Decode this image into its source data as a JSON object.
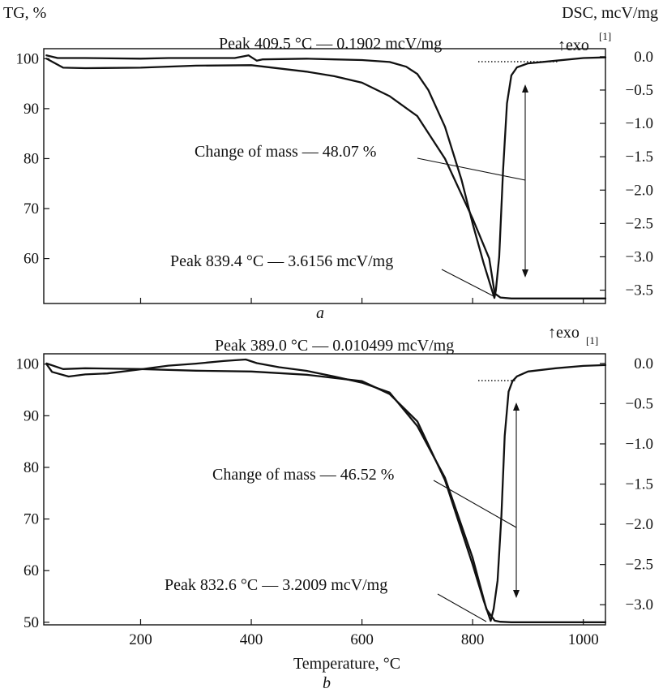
{
  "axes": {
    "tg_label": "TG, %",
    "dsc_label": "DSC, mcV/mg",
    "x_label": "Temperature, °C",
    "x_ticks": [
      "200",
      "400",
      "600",
      "800",
      "1000"
    ]
  },
  "chart_data": [
    {
      "type": "line",
      "panel_label": "a",
      "xlim": [
        25,
        1040
      ],
      "ylim_left": [
        51,
        102
      ],
      "ylim_right": [
        -3.7,
        0.12
      ],
      "y_left_ticks": [
        "100",
        "90",
        "80",
        "70",
        "60"
      ],
      "y_right_ticks": [
        "0.0",
        "−0.5",
        "−1.0",
        "−1.5",
        "−2.0",
        "−2.5",
        "−3.0",
        "−3.5"
      ],
      "exo_label": "↑exo",
      "exo_superscript": "[1]",
      "annotations": {
        "peak_top": "Peak 409.5 °C — 0.1902 mcV/mg",
        "mass_change": "Change of mass — 48.07 %",
        "peak_bottom": "Peak 839.4 °C — 3.6156 mcV/mg"
      },
      "series": [
        {
          "axis": "left",
          "x": [
            30,
            60,
            100,
            200,
            300,
            400,
            500,
            550,
            600,
            650,
            700,
            750,
            800,
            830,
            840,
            850,
            870,
            900,
            1000,
            1040
          ],
          "values": [
            100,
            98.2,
            98.1,
            98.2,
            98.6,
            98.7,
            97.4,
            96.5,
            95.2,
            92.5,
            88.5,
            80,
            68,
            60,
            53,
            52.2,
            52,
            52,
            52,
            52
          ]
        },
        {
          "axis": "right",
          "x": [
            30,
            50,
            100,
            200,
            250,
            300,
            370,
            395,
            410,
            420,
            500,
            550,
            600,
            650,
            680,
            700,
            720,
            750,
            780,
            800,
            820,
            835,
            839.4,
            842,
            848,
            855,
            862,
            870,
            880,
            900,
            950,
            1000,
            1040
          ],
          "values": [
            0.02,
            -0.02,
            -0.02,
            -0.03,
            -0.02,
            -0.02,
            -0.02,
            0.02,
            -0.06,
            -0.04,
            -0.03,
            -0.04,
            -0.05,
            -0.08,
            -0.15,
            -0.26,
            -0.5,
            -1.05,
            -1.85,
            -2.5,
            -3.1,
            -3.5,
            -3.6156,
            -3.5,
            -3.0,
            -1.7,
            -0.7,
            -0.28,
            -0.16,
            -0.1,
            -0.06,
            -0.02,
            -0.01
          ]
        }
      ]
    },
    {
      "type": "line",
      "panel_label": "b",
      "xlim": [
        25,
        1040
      ],
      "ylim_left": [
        49.5,
        102
      ],
      "ylim_right": [
        -3.25,
        0.12
      ],
      "y_left_ticks": [
        "100",
        "90",
        "80",
        "70",
        "60",
        "50"
      ],
      "y_right_ticks": [
        "0.0",
        "−0.5",
        "−1.0",
        "−1.5",
        "−2.0",
        "−2.5",
        "−3.0"
      ],
      "exo_label": "↑exo",
      "exo_superscript": "[1]",
      "annotations": {
        "peak_top": "Peak 389.0 °C — 0.010499 mcV/mg",
        "mass_change": "Change of mass — 46.52 %",
        "peak_bottom": "Peak 832.6 °C — 3.2009 mcV/mg"
      },
      "series": [
        {
          "axis": "left",
          "x": [
            30,
            40,
            70,
            100,
            140,
            200,
            250,
            300,
            350,
            390,
            410,
            450,
            500,
            550,
            600,
            650,
            700,
            750,
            800,
            825,
            840,
            850,
            870,
            900,
            1000,
            1040
          ],
          "values": [
            100,
            98.5,
            97.6,
            98.0,
            98.2,
            99.0,
            99.7,
            100.1,
            100.6,
            100.9,
            100.2,
            99.4,
            98.7,
            97.6,
            96.4,
            94.5,
            88.0,
            78.0,
            62.5,
            52.5,
            50.3,
            50.1,
            50.0,
            50.0,
            50.0,
            50.0
          ]
        },
        {
          "axis": "right",
          "x": [
            30,
            60,
            100,
            200,
            300,
            400,
            500,
            600,
            650,
            700,
            750,
            800,
            820,
            832.6,
            838,
            845,
            852,
            858,
            865,
            872,
            880,
            900,
            950,
            1000,
            1040
          ],
          "values": [
            -0.0,
            -0.07,
            -0.06,
            -0.07,
            -0.09,
            -0.1,
            -0.14,
            -0.22,
            -0.38,
            -0.72,
            -1.45,
            -2.5,
            -2.95,
            -3.2009,
            -3.05,
            -2.7,
            -1.9,
            -0.9,
            -0.35,
            -0.22,
            -0.16,
            -0.1,
            -0.06,
            -0.03,
            -0.02
          ]
        }
      ]
    }
  ]
}
